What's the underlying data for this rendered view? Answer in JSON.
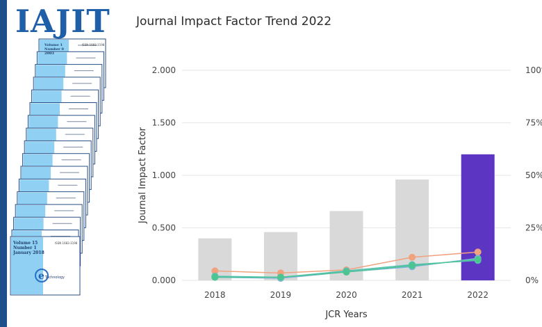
{
  "cover": {
    "logo_text": "IAJIT",
    "front_volume": "Volume 15",
    "front_number": "Number 1",
    "front_date": "January 2018",
    "back_volume": "Volume 1",
    "back_number": "Number 0",
    "back_year": "2003",
    "issn": "ISSN 1683-3198",
    "brand": "Technology"
  },
  "chart_title": "Journal Impact Factor Trend 2022",
  "colors": {
    "bar": "#d9d9d9",
    "bar_highlight": "#5c35c2",
    "line_orange": "#f0a27e",
    "line_teal": "#57c0b4",
    "line_green": "#4cc592",
    "line_blue": "#7fb4de",
    "grid": "#e6e6e6"
  },
  "chart_data": {
    "type": "bar",
    "categories": [
      "2018",
      "2019",
      "2020",
      "2021",
      "2022"
    ],
    "values": [
      0.4,
      0.46,
      0.66,
      0.96,
      1.2
    ],
    "highlight_index": 4,
    "xlabel": "JCR Years",
    "ylabel": "Journal Impact Factor",
    "ylim": [
      0,
      2
    ],
    "y_ticks": [
      "0.000",
      "0.500",
      "1.000",
      "1.500",
      "2.000"
    ],
    "y2_ticks": [
      "0%",
      "25%",
      "50%",
      "75%",
      "100%"
    ],
    "y2lim": [
      0,
      100
    ],
    "grid": true,
    "series": [
      {
        "color_key": "line_orange",
        "values": [
          4.5,
          3.5,
          5.0,
          11.0,
          13.5
        ]
      },
      {
        "color_key": "line_teal",
        "values": [
          2.0,
          1.5,
          4.5,
          7.5,
          9.5
        ]
      },
      {
        "color_key": "line_blue",
        "values": [
          1.5,
          1.0,
          4.0,
          6.5,
          10.5
        ]
      },
      {
        "color_key": "line_green",
        "values": [
          1.5,
          1.5,
          4.0,
          7.0,
          10.0
        ]
      }
    ]
  }
}
